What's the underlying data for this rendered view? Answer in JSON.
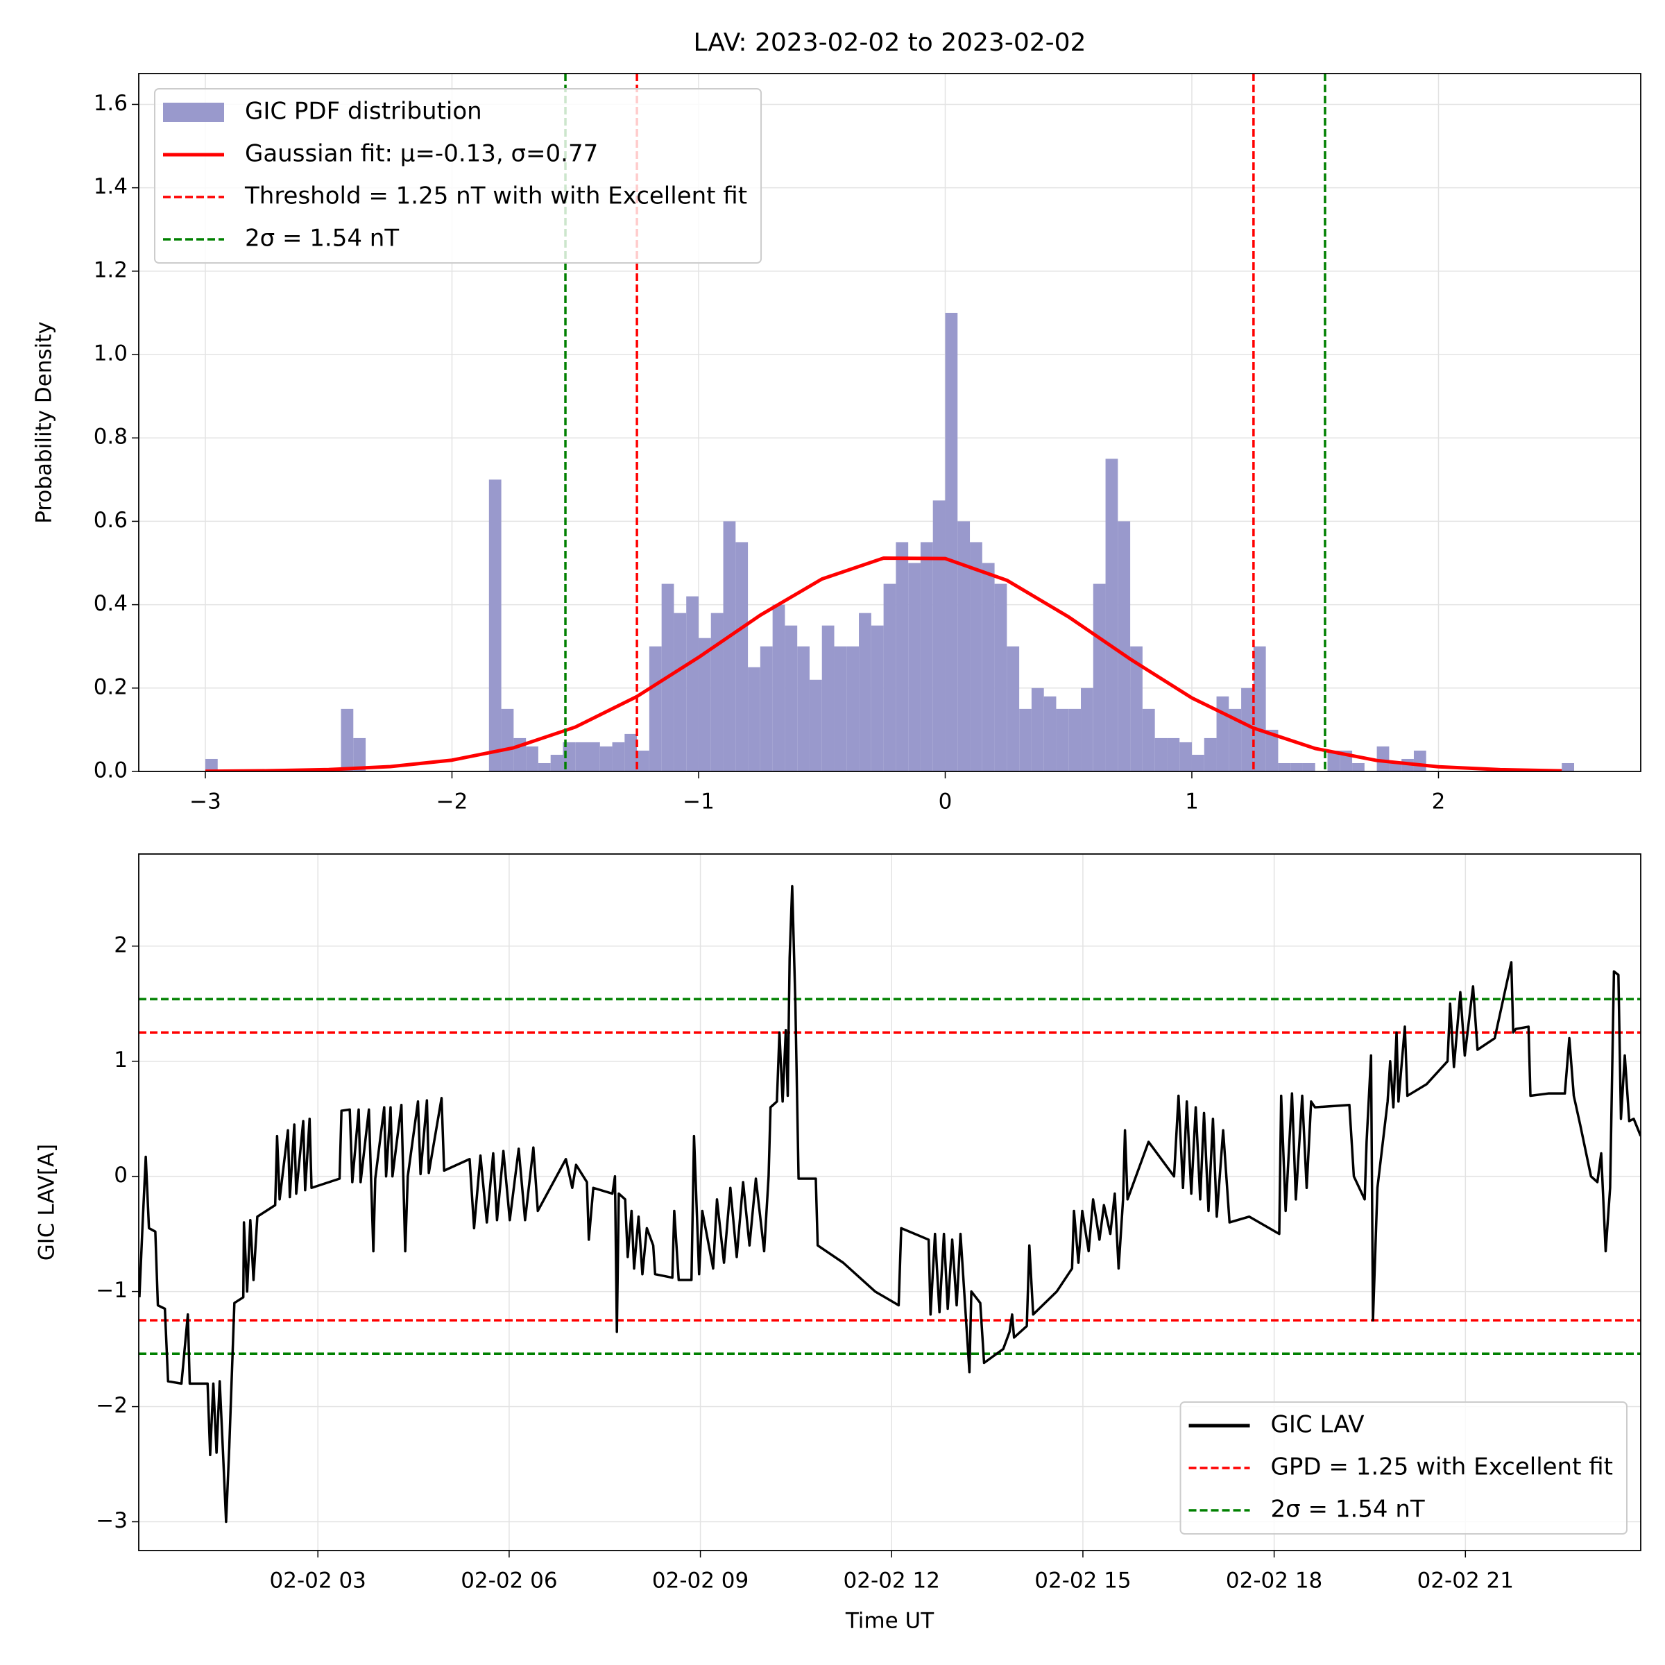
{
  "chart_data": [
    {
      "type": "histogram",
      "title": "LAV:  2023-02-02 to 2023-02-02",
      "ylabel": "Probability Density",
      "name": "GIC PDF distribution",
      "color": "#9999cc",
      "bins": [
        -3,
        -2.95,
        -2.9,
        -2.85,
        -2.8,
        -2.75,
        -2.7,
        -2.65,
        -2.6,
        -2.55,
        -2.5,
        -2.45,
        -2.4,
        -2.35,
        -2.3,
        -2.25,
        -2.2,
        -2.15,
        -2.1,
        -2.05,
        -2,
        -1.95,
        -1.9,
        -1.85,
        -1.8,
        -1.75,
        -1.7,
        -1.65,
        -1.6,
        -1.55,
        -1.5,
        -1.45,
        -1.4,
        -1.35,
        -1.3,
        -1.25,
        -1.2,
        -1.15,
        -1.1,
        -1.05,
        -1,
        -0.95,
        -0.9,
        -0.85,
        -0.8,
        -0.75,
        -0.7,
        -0.65,
        -0.6,
        -0.55,
        -0.5,
        -0.45,
        -0.4,
        -0.35,
        -0.3,
        -0.25,
        -0.2,
        -0.15,
        -0.1,
        -0.05,
        0,
        0.05,
        0.1,
        0.15,
        0.2,
        0.25,
        0.3,
        0.35,
        0.4,
        0.45,
        0.5,
        0.55,
        0.6,
        0.65,
        0.7,
        0.75,
        0.8,
        0.85,
        0.9,
        0.95,
        1,
        1.05,
        1.1,
        1.15,
        1.2,
        1.25,
        1.3,
        1.35,
        1.4,
        1.45,
        1.5,
        1.55,
        1.6,
        1.65,
        1.7,
        1.75,
        1.8,
        1.85,
        1.9,
        1.95,
        2,
        2.05,
        2.1,
        2.15,
        2.2,
        2.25,
        2.3,
        2.35,
        2.4,
        2.45,
        2.5,
        2.55
      ],
      "values": [
        0.03,
        0,
        0,
        0,
        0,
        0,
        0,
        0,
        0,
        0,
        0,
        0.15,
        0.08,
        0,
        0,
        0,
        0,
        0,
        0,
        0,
        0,
        0,
        0,
        0.7,
        0.15,
        0.08,
        0.06,
        0.02,
        0.04,
        0.07,
        0.07,
        0.07,
        0.06,
        0.07,
        0.09,
        0.05,
        0.3,
        0.45,
        0.38,
        0.42,
        0.32,
        0.38,
        0.6,
        0.55,
        0.25,
        0.3,
        0.4,
        0.35,
        0.3,
        0.22,
        0.35,
        0.3,
        0.3,
        0.38,
        0.35,
        0.45,
        0.55,
        0.5,
        0.55,
        0.65,
        1.1,
        0.6,
        0.55,
        0.5,
        0.45,
        0.3,
        0.15,
        0.2,
        0.18,
        0.15,
        0.15,
        0.2,
        0.45,
        0.75,
        0.6,
        0.3,
        0.15,
        0.08,
        0.08,
        0.07,
        0.04,
        0.08,
        0.18,
        0.15,
        0.2,
        0.3,
        0.1,
        0.02,
        0.02,
        0.02,
        0,
        0.05,
        0.05,
        0.02,
        0,
        0.06,
        0.02,
        0.03,
        0.05,
        0,
        0,
        0,
        0,
        0,
        0,
        0,
        0,
        0,
        0,
        0,
        0.02
      ],
      "series": [
        {
          "name": "Gaussian fit: μ=-0.13, σ=0.77",
          "color": "#ff0000",
          "x": [
            -3,
            -2.75,
            -2.5,
            -2.25,
            -2,
            -1.75,
            -1.5,
            -1.25,
            -1,
            -0.75,
            -0.5,
            -0.25,
            0,
            0.25,
            0.5,
            0.75,
            1,
            1.25,
            1.5,
            1.75,
            2,
            2.25,
            2.5
          ],
          "values": [
            0.0005,
            0.0016,
            0.0045,
            0.0117,
            0.0271,
            0.0567,
            0.1064,
            0.1798,
            0.2737,
            0.3747,
            0.4616,
            0.5117,
            0.5106,
            0.4585,
            0.3708,
            0.2696,
            0.1764,
            0.1039,
            0.0551,
            0.0263,
            0.0113,
            0.0044,
            0.0015
          ]
        }
      ],
      "vlines": [
        {
          "name": "Threshold = 1.25 nT with with  Excellent fit",
          "color": "#ff0000",
          "values": [
            -1.25,
            1.25
          ]
        },
        {
          "name": "2σ = 1.54 nT",
          "color": "#008000",
          "values": [
            -1.54,
            1.54
          ]
        }
      ],
      "xlim": [
        -3.27,
        2.82
      ],
      "ylim": [
        0,
        1.674
      ],
      "xticks": [
        {
          "value": -3,
          "label": "−3"
        },
        {
          "value": -2,
          "label": "−2"
        },
        {
          "value": -1,
          "label": "−1"
        },
        0,
        1,
        2
      ],
      "yticks": [
        {
          "value": 0,
          "label": "0.0"
        },
        0.2,
        0.4,
        0.6,
        0.8,
        {
          "value": 1,
          "label": "1.0"
        },
        1.2,
        1.4,
        1.6
      ],
      "grid": true,
      "legend": "upper left"
    },
    {
      "type": "line",
      "xlabel": "Time UT",
      "ylabel": "GIC LAV[A]",
      "series": [
        {
          "name": "GIC LAV",
          "color": "#000000",
          "x": [
            0.2,
            0.25,
            0.3,
            0.35,
            0.45,
            0.49,
            0.6,
            0.65,
            0.86,
            0.96,
            0.99,
            1.27,
            1.31,
            1.36,
            1.41,
            1.46,
            1.51,
            1.56,
            1.61,
            1.69,
            1.83,
            1.84,
            1.89,
            1.94,
            1.99,
            2.05,
            2.33,
            2.36,
            2.4,
            2.53,
            2.56,
            2.63,
            2.66,
            2.77,
            2.8,
            2.87,
            2.9,
            3.34,
            3.37,
            3.5,
            3.54,
            3.64,
            3.67,
            3.8,
            3.87,
            3.9,
            4.04,
            4.07,
            4.14,
            4.17,
            4.31,
            4.37,
            4.41,
            4.57,
            4.61,
            4.71,
            4.74,
            4.94,
            4.98,
            5.38,
            5.45,
            5.55,
            5.65,
            5.75,
            5.81,
            5.91,
            6.01,
            6.15,
            6.25,
            6.38,
            6.45,
            6.89,
            6.99,
            7.05,
            7.22,
            7.25,
            7.32,
            7.62,
            7.66,
            7.69,
            7.72,
            7.82,
            7.86,
            7.92,
            7.96,
            8.03,
            8.09,
            8.16,
            8.26,
            8.29,
            8.56,
            8.59,
            8.66,
            8.86,
            8.9,
            8.98,
            9.03,
            9.2,
            9.26,
            9.37,
            9.47,
            9.57,
            9.67,
            9.77,
            9.87,
            10,
            10.07,
            10.1,
            10.2,
            10.24,
            10.29,
            10.34,
            10.37,
            10.4,
            10.44,
            10.49,
            10.54,
            10.81,
            10.84,
            11.24,
            11.74,
            12.05,
            12.11,
            12.15,
            12.58,
            12.61,
            12.68,
            12.75,
            12.82,
            12.88,
            12.95,
            13.02,
            13.08,
            13.15,
            13.22,
            13.25,
            13.39,
            13.45,
            13.75,
            13.85,
            13.89,
            13.92,
            14.12,
            14.16,
            14.22,
            14.59,
            14.83,
            14.86,
            14.93,
            14.99,
            15.09,
            15.16,
            15.26,
            15.33,
            15.43,
            15.5,
            15.56,
            15.63,
            15.66,
            15.7,
            16.03,
            16.43,
            16.5,
            16.57,
            16.63,
            16.7,
            16.77,
            16.84,
            16.9,
            16.97,
            17.04,
            17.1,
            17.2,
            17.3,
            17.61,
            18.08,
            18.11,
            18.18,
            18.28,
            18.34,
            18.44,
            18.51,
            18.58,
            18.64,
            19.18,
            19.25,
            19.42,
            19.45,
            19.52,
            19.55,
            19.62,
            19.78,
            19.82,
            19.87,
            19.92,
            19.95,
            20.05,
            20.09,
            20.39,
            20.72,
            20.76,
            20.82,
            20.92,
            20.99,
            21.12,
            21.19,
            21.46,
            21.72,
            21.75,
            21.79,
            21.99,
            22.02,
            22.3,
            22.56,
            22.63,
            22.7,
            22.8,
            22.97,
            23.07,
            23.13,
            23.2,
            23.27,
            23.33,
            23.4,
            23.44,
            23.5,
            23.57,
            23.64,
            23.75
          ],
          "values": [
            -1.05,
            -0.42,
            0.17,
            -0.45,
            -0.48,
            -1.12,
            -1.15,
            -1.78,
            -1.8,
            -1.2,
            -1.8,
            -1.8,
            -2.42,
            -1.8,
            -2.4,
            -1.78,
            -2.38,
            -3.0,
            -2.35,
            -1.1,
            -1.05,
            -0.4,
            -1.0,
            -0.38,
            -0.9,
            -0.35,
            -0.25,
            0.35,
            -0.2,
            0.4,
            -0.18,
            0.45,
            -0.15,
            0.48,
            -0.12,
            0.5,
            -0.1,
            -0.02,
            0.57,
            0.58,
            -0.05,
            0.58,
            -0.05,
            0.58,
            -0.65,
            -0.02,
            0.6,
            0,
            0.6,
            0,
            0.62,
            -0.65,
            0,
            0.65,
            0.02,
            0.66,
            0.03,
            0.68,
            0.05,
            0.15,
            -0.45,
            0.18,
            -0.4,
            0.2,
            -0.38,
            0.22,
            -0.38,
            0.24,
            -0.38,
            0.25,
            -0.3,
            0.15,
            -0.1,
            0.1,
            -0.05,
            -0.55,
            -0.1,
            -0.15,
            0,
            -1.35,
            -0.15,
            -0.2,
            -0.7,
            -0.3,
            -0.8,
            -0.35,
            -0.85,
            -0.45,
            -0.6,
            -0.85,
            -0.88,
            -0.3,
            -0.9,
            -0.9,
            0.35,
            -0.85,
            -0.3,
            -0.8,
            -0.2,
            -0.75,
            -0.1,
            -0.7,
            -0.05,
            -0.6,
            -0.02,
            -0.65,
            0,
            0.6,
            0.65,
            1.25,
            0.65,
            1.27,
            0.7,
            1.9,
            2.52,
            1.5,
            -0.02,
            -0.02,
            -0.6,
            -0.75,
            -1.0,
            -1.1,
            -1.12,
            -0.45,
            -0.55,
            -1.2,
            -0.5,
            -1.18,
            -0.5,
            -1.15,
            -0.55,
            -1.12,
            -0.5,
            -1.1,
            -1.7,
            -1.0,
            -1.1,
            -1.62,
            -1.5,
            -1.35,
            -1.2,
            -1.4,
            -1.3,
            -0.6,
            -1.2,
            -1.0,
            -0.8,
            -0.3,
            -0.75,
            -0.3,
            -0.65,
            -0.2,
            -0.55,
            -0.25,
            -0.5,
            -0.15,
            -0.8,
            -0.2,
            0.4,
            -0.2,
            0.3,
            0,
            0.7,
            -0.1,
            0.65,
            -0.15,
            0.6,
            -0.2,
            0.55,
            -0.3,
            0.5,
            -0.35,
            0.4,
            -0.4,
            -0.35,
            -0.5,
            0.7,
            -0.3,
            0.72,
            -0.2,
            0.7,
            -0.1,
            0.65,
            0.6,
            0.62,
            0,
            -0.2,
            0.3,
            1.05,
            -1.25,
            -0.1,
            0.65,
            1.0,
            0.6,
            1.25,
            0.65,
            1.3,
            0.7,
            0.8,
            1.0,
            1.5,
            0.95,
            1.6,
            1.05,
            1.65,
            1.1,
            1.2,
            1.86,
            1.25,
            1.28,
            1.3,
            0.7,
            0.72,
            0.72,
            1.2,
            0.7,
            0.45,
            0,
            -0.05,
            0.2,
            -0.65,
            -0.1,
            1.78,
            1.75,
            0.5,
            1.05,
            0.48,
            0.5,
            0.35
          ]
        }
      ],
      "hlines": [
        {
          "name": "GPD = 1.25 with  Excellent fit",
          "color": "#ff0000",
          "values": [
            1.25,
            -1.25
          ]
        },
        {
          "name": "2σ = 1.54 nT",
          "color": "#008000",
          "values": [
            1.54,
            -1.54
          ]
        }
      ],
      "xlim": [
        0.19,
        23.75
      ],
      "ylim": [
        -3.25,
        2.8
      ],
      "xticks": [
        {
          "value": 3,
          "label": "02-02 03"
        },
        {
          "value": 6,
          "label": "02-02 06"
        },
        {
          "value": 9,
          "label": "02-02 09"
        },
        {
          "value": 12,
          "label": "02-02 12"
        },
        {
          "value": 15,
          "label": "02-02 15"
        },
        {
          "value": 18,
          "label": "02-02 18"
        },
        {
          "value": 21,
          "label": "02-02 21"
        }
      ],
      "yticks": [
        {
          "value": -3,
          "label": "−3"
        },
        {
          "value": -2,
          "label": "−2"
        },
        {
          "value": -1,
          "label": "−1"
        },
        0,
        1,
        2
      ],
      "grid": true,
      "legend": "lower right"
    }
  ]
}
